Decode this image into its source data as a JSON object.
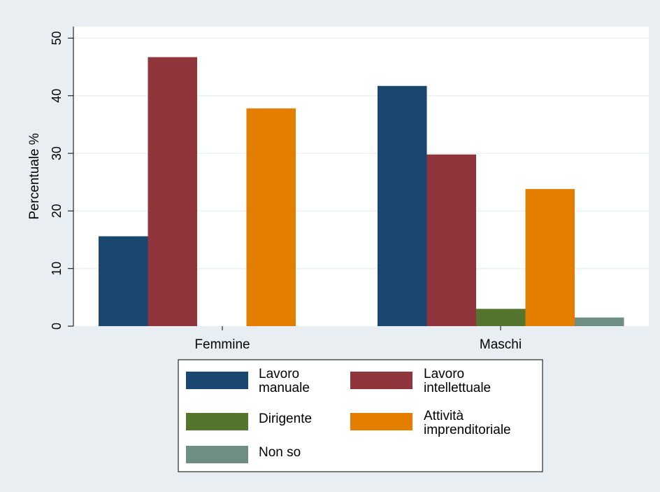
{
  "chart_data": {
    "type": "bar",
    "title": "",
    "xlabel": "",
    "ylabel": "Percentuale %",
    "ylim": [
      0,
      52
    ],
    "yticks": [
      0,
      10,
      20,
      30,
      40,
      50
    ],
    "grid": true,
    "legend_position": "bottom",
    "categories": [
      "Femmine",
      "Maschi"
    ],
    "series": [
      {
        "name": "Lavoro manuale",
        "legend_lines": [
          "Lavoro",
          "manuale"
        ],
        "color": "#1a476f",
        "values": [
          15.6,
          41.7
        ]
      },
      {
        "name": "Lavoro intellettuale",
        "legend_lines": [
          "Lavoro",
          "intellettuale"
        ],
        "color": "#90353b",
        "values": [
          46.7,
          29.8
        ]
      },
      {
        "name": "Dirigente",
        "legend_lines": [
          "Dirigente"
        ],
        "color": "#55752f",
        "values": [
          0,
          3.0
        ]
      },
      {
        "name": "Attività imprenditoriale",
        "legend_lines": [
          "Attività",
          "imprenditoriale"
        ],
        "color": "#e37e00",
        "values": [
          37.8,
          23.8
        ]
      },
      {
        "name": "Non so",
        "legend_lines": [
          "Non so"
        ],
        "color": "#6e8e84",
        "values": [
          0,
          1.5
        ]
      }
    ]
  },
  "colors": {
    "background": "#e8eef1",
    "plot_background": "#ffffff",
    "grid": "#eaf2f3",
    "axis": "#000000"
  }
}
